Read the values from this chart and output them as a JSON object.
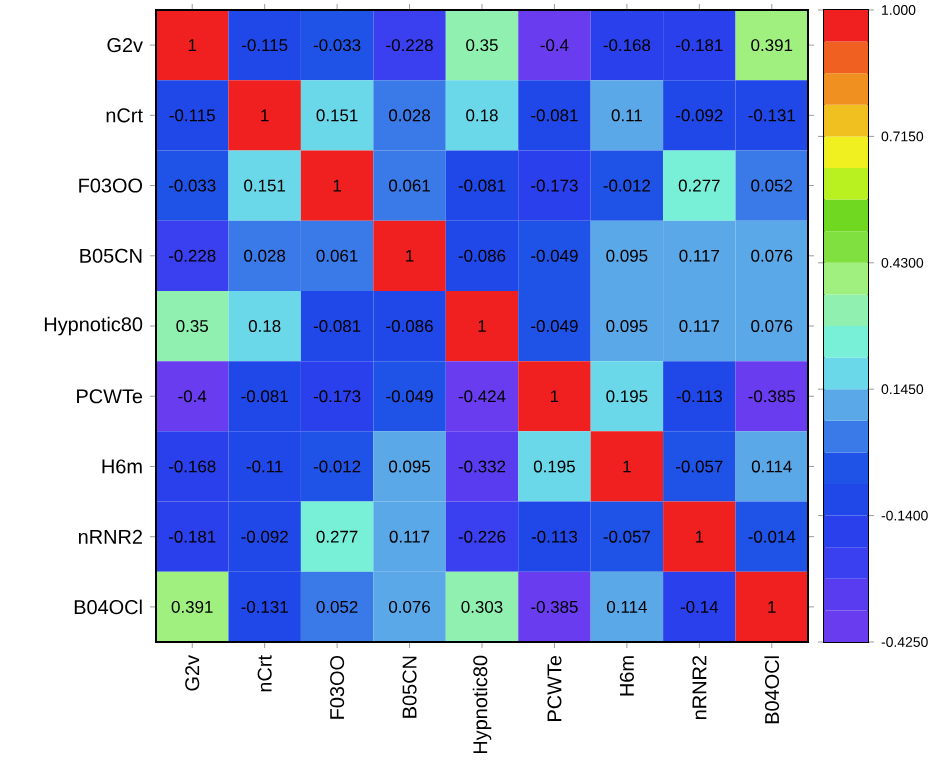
{
  "chart_data": {
    "type": "heatmap",
    "categories": [
      "G2v",
      "nCrt",
      "F03OO",
      "B05CN",
      "Hypnotic80",
      "PCWTe",
      "H6m",
      "nRNR2",
      "B04OCl"
    ],
    "y_categories": [
      "G2v",
      "nCrt",
      "F03OO",
      "B05CN",
      "Hypnotic80",
      "PCWTe",
      "H6m",
      "nRNR2",
      "B04OCl"
    ],
    "cells": [
      [
        1,
        -0.115,
        -0.033,
        -0.228,
        0.35,
        -0.4,
        -0.168,
        -0.181,
        0.391
      ],
      [
        -0.115,
        1,
        0.151,
        0.028,
        0.18,
        -0.081,
        0.11,
        -0.092,
        -0.131
      ],
      [
        -0.033,
        0.151,
        1,
        0.061,
        -0.081,
        -0.173,
        -0.012,
        0.277,
        0.052
      ],
      [
        -0.228,
        0.028,
        0.061,
        1,
        -0.086,
        -0.049,
        0.095,
        0.117,
        0.076
      ],
      [
        0.35,
        0.18,
        -0.081,
        -0.086,
        1,
        -0.049,
        0.095,
        0.117,
        0.076
      ],
      [
        -0.4,
        -0.081,
        -0.173,
        -0.049,
        -0.424,
        1,
        0.195,
        -0.113,
        -0.385
      ],
      [
        -0.168,
        -0.11,
        -0.012,
        0.095,
        -0.332,
        0.195,
        1,
        -0.057,
        0.114
      ],
      [
        -0.181,
        -0.092,
        0.277,
        0.117,
        -0.226,
        -0.113,
        -0.057,
        1,
        -0.014
      ],
      [
        0.391,
        -0.131,
        0.052,
        0.076,
        0.303,
        -0.385,
        0.114,
        -0.14,
        1
      ]
    ],
    "data_labels": true,
    "clim": [
      -0.425,
      1
    ],
    "cticks": [
      {
        "value": 1,
        "label": "1.000"
      },
      {
        "value": 0.715,
        "label": "0.7150"
      },
      {
        "value": 0.43,
        "label": "0.4300"
      },
      {
        "value": 0.145,
        "label": "0.1450"
      },
      {
        "value": -0.14,
        "label": "-0.1400"
      },
      {
        "value": -0.425,
        "label": "-0.4250"
      }
    ]
  }
}
